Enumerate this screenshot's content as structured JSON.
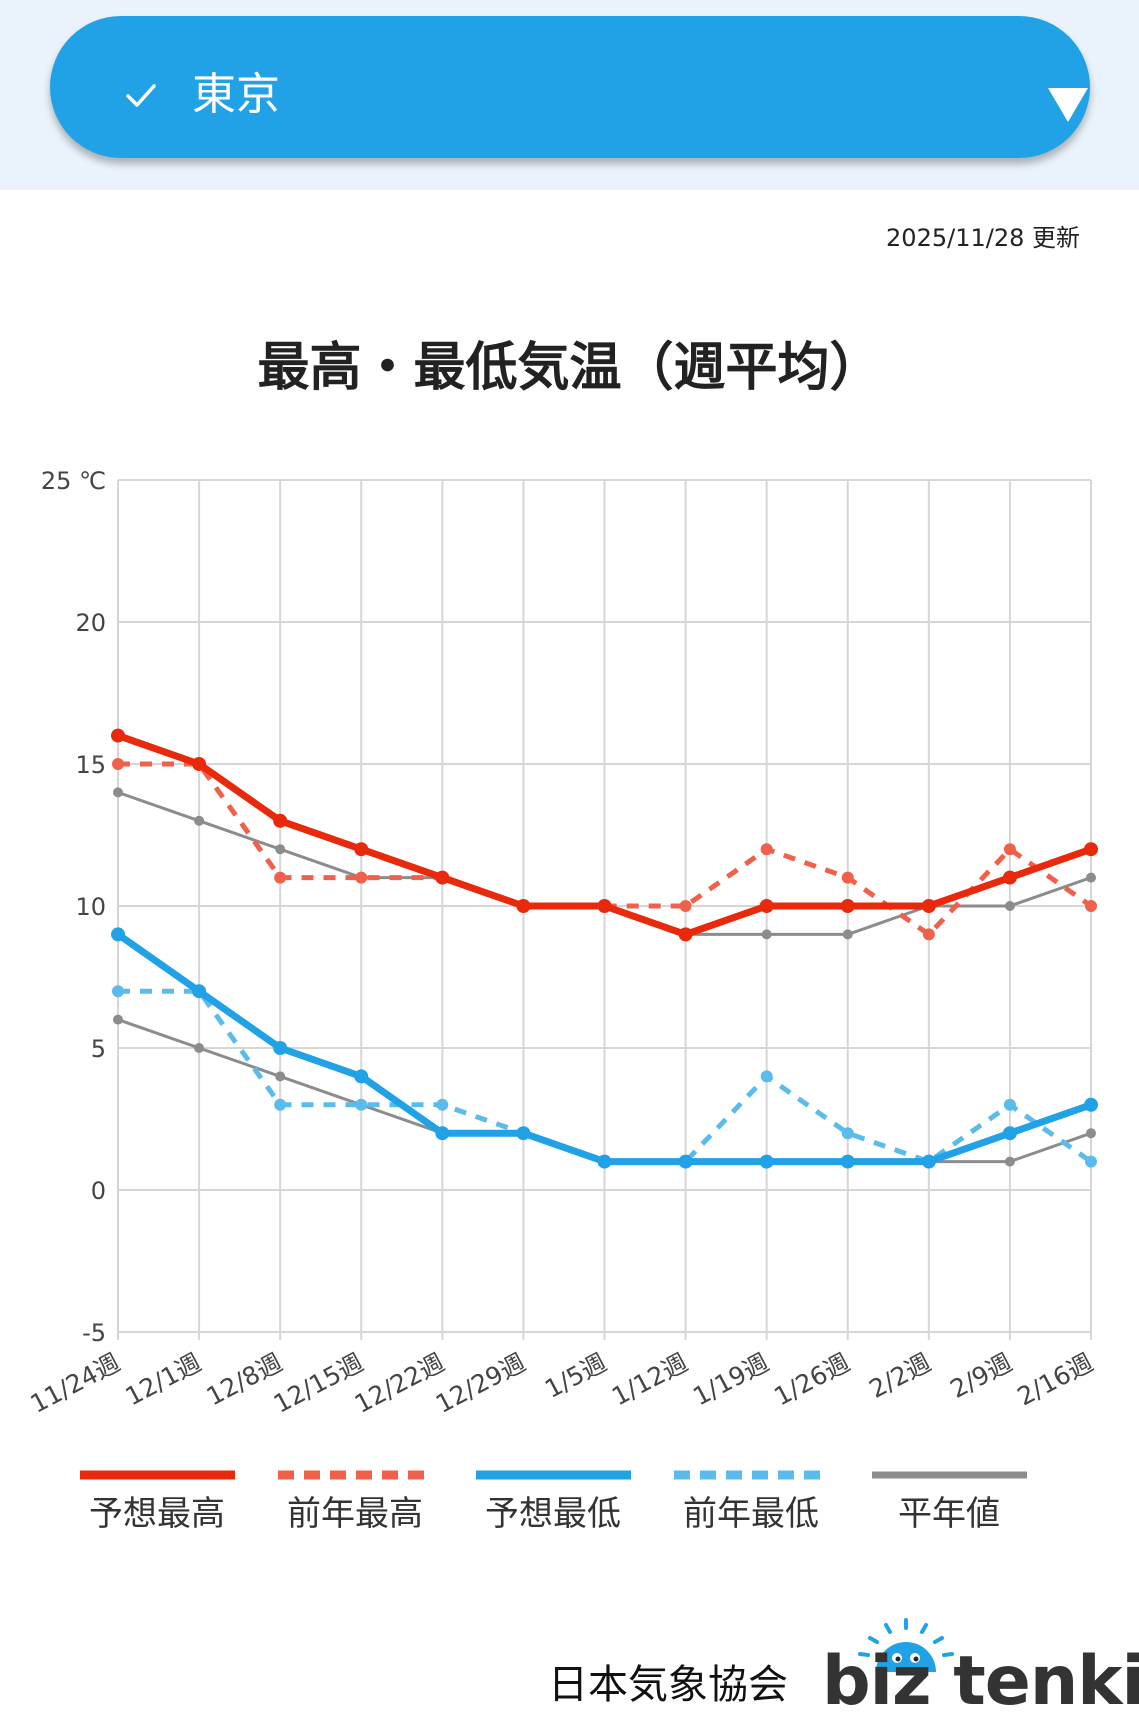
{
  "location": {
    "selected": "東京",
    "accent_color": "#21a1e6",
    "check_icon": "check-icon",
    "arrow_icon": "triangle-down-icon"
  },
  "updated": "2025/11/28 更新",
  "branding": {
    "org": "日本気象協会",
    "product": "biz tenki",
    "logo_icon": "sun-face-icon"
  },
  "chart_data": {
    "type": "line",
    "title": "最高・最低気温（週平均）",
    "unit": "℃",
    "categories": [
      "11/24週",
      "12/1週",
      "12/8週",
      "12/15週",
      "12/22週",
      "12/29週",
      "1/5週",
      "1/12週",
      "1/19週",
      "1/26週",
      "2/2週",
      "2/9週",
      "2/16週"
    ],
    "ylim": [
      -5,
      25
    ],
    "yticks": [
      -5,
      0,
      5,
      10,
      15,
      20,
      25
    ],
    "ytick_labels": [
      "-5",
      "0",
      "5",
      "10",
      "15",
      "20",
      "25 ℃"
    ],
    "grid": true,
    "legend_position": "bottom",
    "series": [
      {
        "name": "予想最高",
        "color": "#e8290b",
        "style": "solid-thick",
        "values": [
          16,
          15,
          13,
          12,
          11,
          10,
          10,
          9,
          10,
          10,
          10,
          11,
          12
        ]
      },
      {
        "name": "前年最高",
        "color": "#f0604a",
        "style": "dashed",
        "values": [
          15,
          15,
          11,
          11,
          11,
          10,
          10,
          10,
          12,
          11,
          9,
          12,
          10
        ]
      },
      {
        "name": "予想最低",
        "color": "#21a1e6",
        "style": "solid-thick",
        "values": [
          9,
          7,
          5,
          4,
          2,
          2,
          1,
          1,
          1,
          1,
          1,
          2,
          3
        ]
      },
      {
        "name": "前年最低",
        "color": "#5bbcec",
        "style": "dashed",
        "values": [
          7,
          7,
          3,
          3,
          3,
          2,
          1,
          1,
          4,
          2,
          1,
          3,
          1
        ]
      },
      {
        "name": "平年値",
        "color": "#8c8c8c",
        "style": "solid-thin",
        "values": [
          14,
          13,
          12,
          11,
          11,
          10,
          10,
          9,
          9,
          9,
          10,
          10,
          11
        ]
      },
      {
        "name": "",
        "color": "#8c8c8c",
        "style": "solid-thin",
        "in_legend": false,
        "values": [
          6,
          5,
          4,
          3,
          2,
          2,
          1,
          1,
          1,
          1,
          1,
          1,
          2
        ]
      }
    ]
  }
}
